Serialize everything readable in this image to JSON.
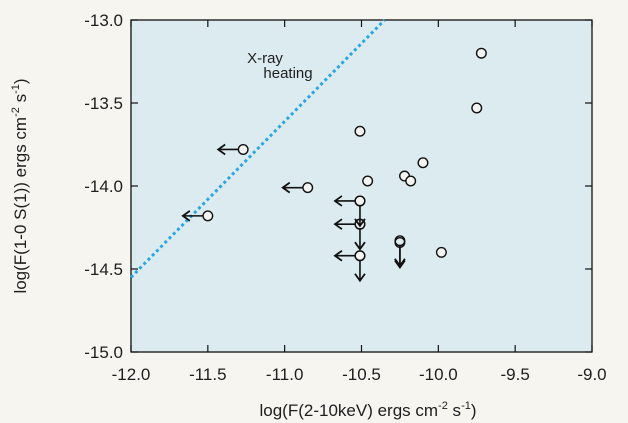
{
  "chart_data": {
    "type": "scatter",
    "xlabel": "log(F(2-10keV) ergs cm",
    "xlabel_sup1": "-2",
    "xlabel_mid": " s",
    "xlabel_sup2": "-1",
    "xlabel_end": ")",
    "ylabel": "log(F(1-0 S(1)) ergs cm",
    "ylabel_sup1": "-2",
    "ylabel_mid": " s",
    "ylabel_sup2": "-1",
    "ylabel_end": ")",
    "xlim": [
      -12.0,
      -9.0
    ],
    "ylim": [
      -15.0,
      -13.0
    ],
    "xticks": [
      -12.0,
      -11.5,
      -11.0,
      -10.5,
      -10.0,
      -9.5,
      -9.0
    ],
    "xtick_labels": [
      "-12.0",
      "-11.5",
      "-11.0",
      "-10.5",
      "-10.0",
      "-9.5",
      "-9.0"
    ],
    "yticks": [
      -13.0,
      -13.5,
      -14.0,
      -14.5,
      -15.0
    ],
    "ytick_labels": [
      "-13.0",
      "-13.5",
      "-14.0",
      "-14.5",
      "-15.0"
    ],
    "grid": false,
    "background_color": "#dcebf0",
    "annotation": {
      "line1": "X-ray",
      "line2": "heating"
    },
    "reference_line": {
      "style": "dotted",
      "color": "#2aa7e0",
      "x": [
        -12.0,
        -10.35
      ],
      "y": [
        -14.55,
        -13.0
      ]
    },
    "series": [
      {
        "marker": "open-circle",
        "points": [
          {
            "x": -9.72,
            "y": -13.2,
            "limit": "none"
          },
          {
            "x": -9.75,
            "y": -13.53,
            "limit": "none"
          },
          {
            "x": -10.51,
            "y": -13.67,
            "limit": "none"
          },
          {
            "x": -10.1,
            "y": -13.86,
            "limit": "none"
          },
          {
            "x": -10.22,
            "y": -13.94,
            "limit": "none"
          },
          {
            "x": -10.18,
            "y": -13.97,
            "limit": "none"
          },
          {
            "x": -10.46,
            "y": -13.97,
            "limit": "none"
          },
          {
            "x": -9.98,
            "y": -14.4,
            "limit": "none"
          },
          {
            "x": -11.27,
            "y": -13.78,
            "limit": "x-upper"
          },
          {
            "x": -10.85,
            "y": -14.01,
            "limit": "x-upper"
          },
          {
            "x": -11.5,
            "y": -14.18,
            "limit": "x-upper"
          },
          {
            "x": -10.51,
            "y": -14.09,
            "limit": "x-upper"
          },
          {
            "x": -10.51,
            "y": -14.23,
            "limit": "x-upper"
          },
          {
            "x": -10.51,
            "y": -14.42,
            "limit": "x-upper"
          },
          {
            "x": -10.51,
            "y": -14.09,
            "limit": "y-upper"
          },
          {
            "x": -10.51,
            "y": -14.23,
            "limit": "y-upper"
          },
          {
            "x": -10.51,
            "y": -14.42,
            "limit": "y-upper"
          },
          {
            "x": -10.25,
            "y": -14.33,
            "limit": "y-upper"
          },
          {
            "x": -10.25,
            "y": -14.34,
            "limit": "y-upper"
          }
        ]
      }
    ]
  }
}
